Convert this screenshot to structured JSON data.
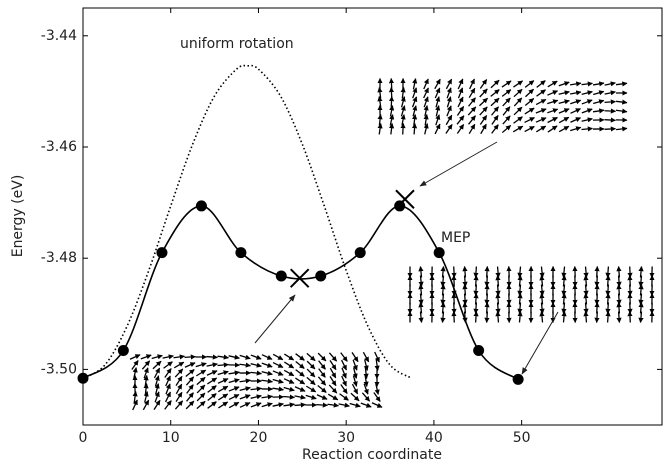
{
  "chart_data": {
    "type": "line",
    "x_label": "Reaction coordinate",
    "y_label": "Energy (eV)",
    "xlim": [
      0,
      66
    ],
    "ylim": [
      -3.51,
      -3.435
    ],
    "xticks": [
      0,
      10,
      20,
      30,
      40,
      50
    ],
    "yticks": [
      -3.44,
      -3.46,
      -3.48,
      {
        "value": -3.5,
        "label": "-3.50"
      }
    ],
    "series": [
      {
        "name": "uniform rotation",
        "color": "#000000",
        "style": "dotted",
        "marker": "none",
        "x": [
          0,
          2.5,
          5,
          7.5,
          10,
          12.5,
          15,
          17.5,
          18.75,
          20,
          22.5,
          25,
          27.5,
          30,
          32.5,
          35,
          37.5
        ],
        "values": [
          -3.5016,
          -3.4992,
          -3.4923,
          -3.4822,
          -3.4706,
          -3.4595,
          -3.4508,
          -3.446,
          -3.4454,
          -3.446,
          -3.4508,
          -3.4595,
          -3.4706,
          -3.4822,
          -3.4923,
          -3.4992,
          -3.5016
        ]
      },
      {
        "name": "MEP",
        "color": "#000000",
        "style": "solid",
        "marker": "circle",
        "x": [
          0,
          4.6,
          9.0,
          13.5,
          18.0,
          22.6,
          27.1,
          31.6,
          36.1,
          40.6,
          45.1,
          49.6
        ],
        "values": [
          -3.5016,
          -3.4966,
          -3.479,
          -3.4706,
          -3.479,
          -3.4832,
          -3.4832,
          -3.479,
          -3.4706,
          -3.479,
          -3.4966,
          -3.5018
        ]
      },
      {
        "color": "#000000",
        "style": "none",
        "marker": "cross",
        "x": [
          24.7,
          36.7
        ],
        "values": [
          -3.4836,
          -3.4694
        ]
      }
    ]
  }
}
